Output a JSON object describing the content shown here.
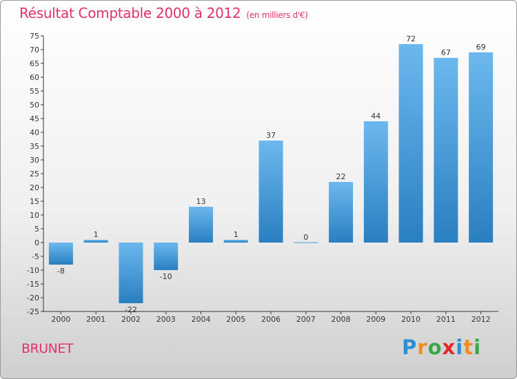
{
  "title": "Résultat Comptable 2000 à 2012",
  "title_unit": "(en milliers d'€)",
  "town": "BRUNET",
  "logo": {
    "letters": [
      "P",
      "r",
      "o",
      "x",
      "i",
      "t",
      "i"
    ],
    "colors": [
      "#2a8fd6",
      "#f28c1e",
      "#3aa84a",
      "#e02a2a",
      "#2a8fd6",
      "#f28c1e",
      "#3aa84a"
    ]
  },
  "colors": {
    "title": "#e0306e",
    "bar_dark": "#2a7fc0",
    "bar_light": "#6cb8ee",
    "axis": "#333333"
  },
  "chart_data": {
    "type": "bar",
    "title": "Résultat Comptable 2000 à 2012",
    "xlabel": "",
    "ylabel": "",
    "categories": [
      "2000",
      "2001",
      "2002",
      "2003",
      "2004",
      "2005",
      "2006",
      "2007",
      "2008",
      "2009",
      "2010",
      "2011",
      "2012"
    ],
    "values": [
      -8,
      1,
      -22,
      -10,
      13,
      1,
      37,
      0,
      22,
      44,
      72,
      67,
      69
    ],
    "labels": [
      "-8",
      "1",
      "-22",
      "-10",
      "13",
      "1",
      "37",
      "0",
      "22",
      "44",
      "72",
      "67",
      "69"
    ],
    "ylim": [
      -25,
      75
    ],
    "ytick_step": 5,
    "grid": false,
    "legend": "none"
  }
}
